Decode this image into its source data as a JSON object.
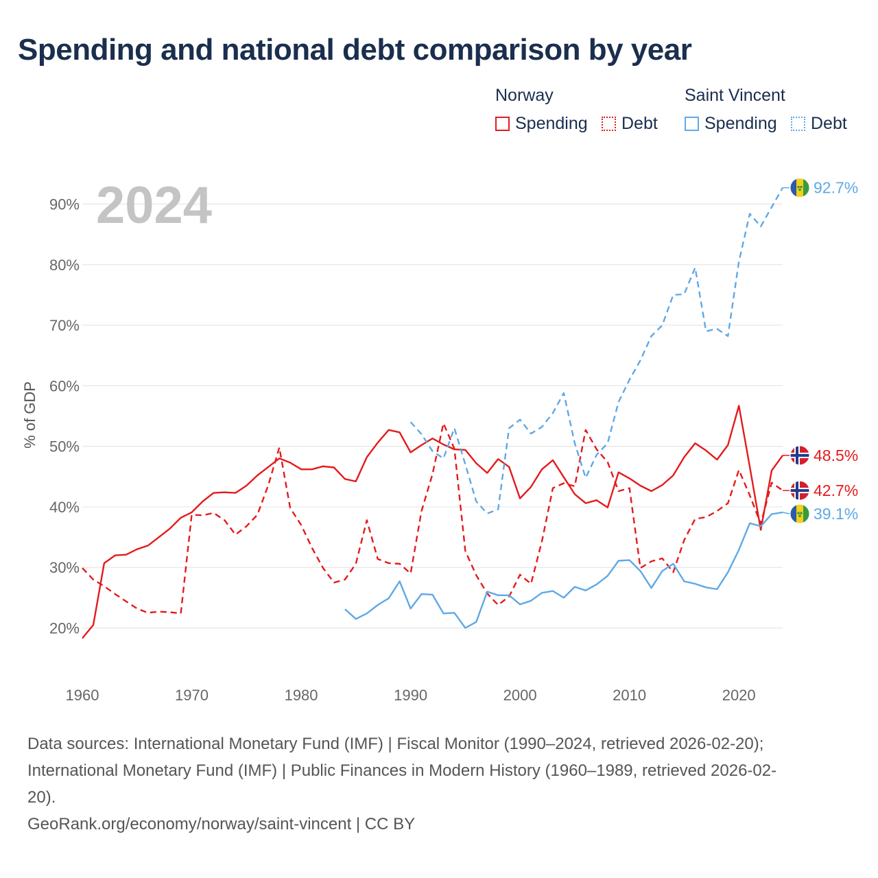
{
  "title": "Spending and national debt comparison by year",
  "legend": {
    "groups": [
      {
        "name": "Norway",
        "color": "#e41a1c",
        "items": [
          {
            "label": "Spending",
            "style": "solid"
          },
          {
            "label": "Debt",
            "style": "dotted"
          }
        ]
      },
      {
        "name": "Saint Vincent",
        "color": "#5fa8e6",
        "items": [
          {
            "label": "Spending",
            "style": "solid"
          },
          {
            "label": "Debt",
            "style": "dotted"
          }
        ]
      }
    ]
  },
  "chart_data": {
    "type": "line",
    "year_label": "2024",
    "ylabel": "% of GDP",
    "xlim": [
      1960,
      2024
    ],
    "ylim": [
      12,
      95
    ],
    "x_ticks": [
      1960,
      1970,
      1980,
      1990,
      2000,
      2010,
      2020
    ],
    "y_ticks": [
      20,
      30,
      40,
      50,
      60,
      70,
      80,
      90
    ],
    "y_tick_labels": [
      "20%",
      "30%",
      "40%",
      "50%",
      "60%",
      "70%",
      "80%",
      "90%"
    ],
    "series": [
      {
        "name": "Norway Spending",
        "country": "Norway",
        "metric": "Spending",
        "color": "#e41a1c",
        "dash": "solid",
        "start": 1960,
        "values": [
          18.3,
          20.5,
          30.7,
          32.0,
          32.1,
          33.0,
          33.6,
          35.0,
          36.4,
          38.2,
          39.1,
          40.9,
          42.3,
          42.4,
          42.3,
          43.5,
          45.2,
          46.6,
          48.0,
          47.3,
          46.2,
          46.2,
          46.7,
          46.5,
          44.6,
          44.2,
          48.2,
          50.6,
          52.7,
          52.3,
          49.0,
          50.2,
          51.3,
          50.3,
          49.5,
          49.4,
          47.2,
          45.6,
          47.9,
          46.6,
          41.4,
          43.3,
          46.2,
          47.7,
          44.9,
          42.1,
          40.6,
          41.1,
          39.9,
          45.7,
          44.7,
          43.5,
          42.6,
          43.6,
          45.2,
          48.2,
          50.5,
          49.3,
          47.8,
          50.2,
          56.7,
          46.6,
          36.2,
          46.0,
          48.5
        ],
        "end_label": "48.5%",
        "flag": "norway"
      },
      {
        "name": "Norway Debt",
        "country": "Norway",
        "metric": "Debt",
        "color": "#e41a1c",
        "dash": "dashed",
        "start": 1960,
        "values": [
          29.9,
          28.0,
          26.9,
          25.6,
          24.4,
          23.2,
          22.5,
          22.7,
          22.6,
          22.4,
          38.7,
          38.6,
          39.0,
          37.8,
          35.4,
          36.8,
          38.7,
          43.6,
          49.8,
          39.8,
          37.0,
          33.2,
          29.9,
          27.5,
          28.0,
          30.6,
          37.8,
          31.4,
          30.7,
          30.6,
          29.0,
          39.3,
          45.4,
          53.8,
          49.6,
          32.7,
          28.7,
          25.7,
          23.8,
          25.2,
          28.8,
          27.3,
          34.3,
          43.1,
          43.9,
          43.4,
          52.7,
          49.5,
          47.4,
          42.6,
          43.1,
          29.9,
          31.0,
          31.5,
          29.2,
          34.5,
          38.0,
          38.3,
          39.3,
          40.6,
          46.1,
          41.9,
          37.2,
          44.0,
          42.7
        ],
        "end_label": "42.7%",
        "flag": "norway"
      },
      {
        "name": "Saint Vincent Spending",
        "country": "Saint Vincent",
        "metric": "Spending",
        "color": "#5fa8e6",
        "dash": "solid",
        "start": 1984,
        "values": [
          23.1,
          21.5,
          22.4,
          23.8,
          24.9,
          27.7,
          23.2,
          25.6,
          25.5,
          22.4,
          22.5,
          20.0,
          21.0,
          26.0,
          25.4,
          25.4,
          23.9,
          24.5,
          25.8,
          26.1,
          25.0,
          26.8,
          26.2,
          27.2,
          28.6,
          31.1,
          31.2,
          29.4,
          26.6,
          29.4,
          30.6,
          27.7,
          27.3,
          26.7,
          26.4,
          29.2,
          32.9,
          37.3,
          36.8,
          38.8,
          39.1
        ],
        "end_label": "39.1%",
        "flag": "svg"
      },
      {
        "name": "Saint Vincent Debt",
        "country": "Saint Vincent",
        "metric": "Debt",
        "color": "#5fa8e6",
        "dash": "dashed",
        "start": 1990,
        "values": [
          54.0,
          52.0,
          49.2,
          48.0,
          53.0,
          47.0,
          40.9,
          38.9,
          39.6,
          53.0,
          54.4,
          52.1,
          53.2,
          55.5,
          58.8,
          50.5,
          44.8,
          48.6,
          50.5,
          57.3,
          61.0,
          64.2,
          68.2,
          70.0,
          75.0,
          75.1,
          79.5,
          69.0,
          69.4,
          68.2,
          80.5,
          88.4,
          86.3,
          89.5,
          92.7
        ],
        "end_label": "92.7%",
        "flag": "svg"
      }
    ]
  },
  "sources": {
    "line1": "Data sources: International Monetary Fund (IMF) | Fiscal Monitor (1990–2024, retrieved 2026-02-20);",
    "line2": "International Monetary Fund (IMF) | Public Finances in Modern History (1960–1989, retrieved 2026-02-",
    "line3": "20).",
    "line4": "GeoRank.org/economy/norway/saint-vincent | CC BY"
  }
}
